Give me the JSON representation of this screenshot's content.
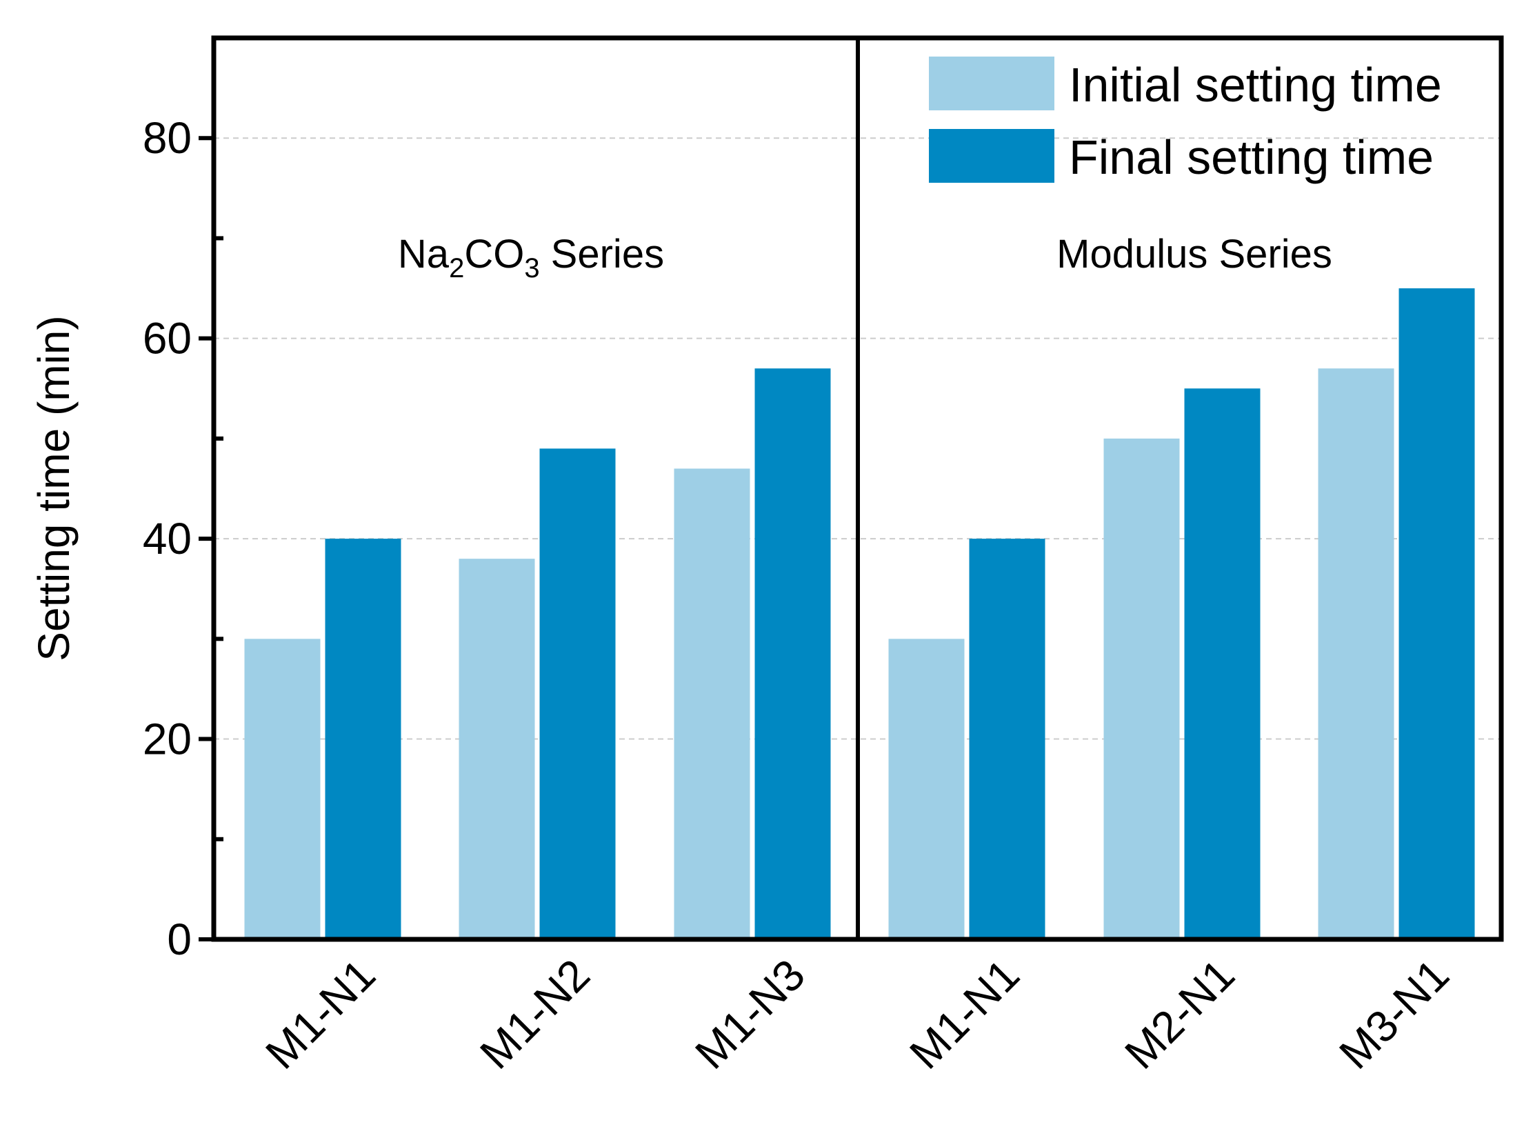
{
  "chart_data": {
    "type": "bar",
    "title": "",
    "xlabel": "",
    "ylabel": "Setting time (min)",
    "ylim": [
      0,
      90
    ],
    "yticks": [
      0,
      20,
      40,
      60,
      80
    ],
    "y_minor_ticks": [
      10,
      30,
      50,
      70
    ],
    "grid": "horizontal dashed",
    "legend_position": "top-right",
    "categories": [
      "M1-N1",
      "M1-N2",
      "M1-N3",
      "M1-N1",
      "M2-N1",
      "M3-N1"
    ],
    "series": [
      {
        "name": "Initial setting time",
        "color": "#9ecfe6",
        "values": [
          30,
          38,
          47,
          30,
          50,
          57
        ]
      },
      {
        "name": "Final setting time",
        "color": "#0088c2",
        "values": [
          40,
          49,
          57,
          40,
          55,
          65
        ]
      }
    ],
    "groups": [
      {
        "main": "Na",
        "sub1": "2",
        "mid": "CO",
        "sub2": "3",
        "tail": " Series"
      },
      {
        "label": "Modulus Series"
      }
    ]
  }
}
